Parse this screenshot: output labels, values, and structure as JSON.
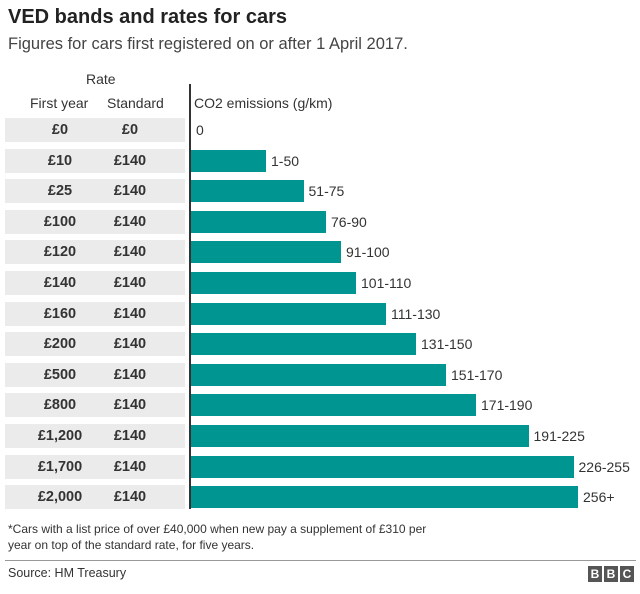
{
  "title": "VED bands and rates for cars",
  "subtitle": "Figures for cars first registered on or after 1 April 2017.",
  "headers": {
    "rate": "Rate",
    "first_year": "First year",
    "standard": "Standard",
    "emissions": "CO2 emissions (g/km)"
  },
  "footnote": "*Cars with a list price of over £40,000 when new pay a supplement of £310 per year on top of the standard rate, for five years.",
  "source": "Source: HM Treasury",
  "logo": "BBC",
  "colors": {
    "bar": "#009591",
    "row_bg": "#ebebeb"
  },
  "chart_data": {
    "type": "bar",
    "orientation": "horizontal",
    "title": "VED bands and rates for cars",
    "xlabel": "CO2 emissions (g/km)",
    "categories": [
      "0",
      "1-50",
      "51-75",
      "76-90",
      "91-100",
      "101-110",
      "111-130",
      "131-150",
      "151-170",
      "171-190",
      "191-225",
      "226-255",
      "256+"
    ],
    "values": [
      0,
      50,
      75,
      90,
      100,
      110,
      130,
      150,
      170,
      190,
      225,
      255,
      258
    ],
    "first_year": [
      "£0",
      "£10",
      "£25",
      "£100",
      "£120",
      "£140",
      "£160",
      "£200",
      "£500",
      "£800",
      "£1,200",
      "£1,700",
      "£2,000"
    ],
    "standard": [
      "£0",
      "£140",
      "£140",
      "£140",
      "£140",
      "£140",
      "£140",
      "£140",
      "£140",
      "£140",
      "£140",
      "£140",
      "£140"
    ],
    "xlim": [
      0,
      260
    ],
    "grid": false
  }
}
